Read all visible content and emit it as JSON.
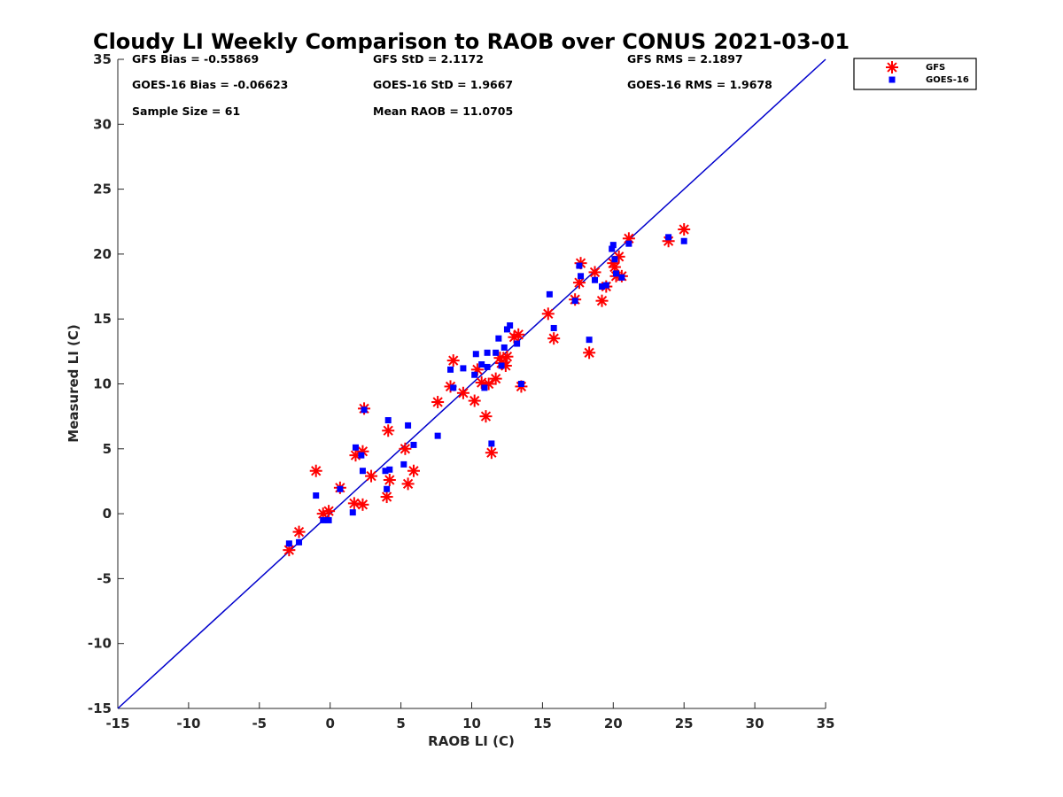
{
  "chart_data": {
    "type": "scatter",
    "title": "Cloudy LI Weekly Comparison to RAOB over CONUS 2021-03-01",
    "xlabel": "RAOB LI (C)",
    "ylabel": "Measured LI (C)",
    "xlim": [
      -15,
      35
    ],
    "ylim": [
      -15,
      35
    ],
    "xticks": [
      -15,
      -10,
      -5,
      0,
      5,
      10,
      15,
      20,
      25,
      30,
      35
    ],
    "yticks": [
      -15,
      -10,
      -5,
      0,
      5,
      10,
      15,
      20,
      25,
      30,
      35
    ],
    "grid": false,
    "legend_position": "top-right",
    "reference_line": {
      "x": [
        -15,
        35
      ],
      "y": [
        -15,
        35
      ],
      "color": "#0000cc"
    },
    "stats": [
      {
        "label": "GFS Bias = -0.55869"
      },
      {
        "label": "GFS StD = 2.1172"
      },
      {
        "label": "GFS RMS = 2.1897"
      },
      {
        "label": "GOES-16 Bias = -0.06623"
      },
      {
        "label": "GOES-16 StD = 1.9667"
      },
      {
        "label": "GOES-16 RMS = 1.9678"
      },
      {
        "label": "Sample Size = 61"
      },
      {
        "label": "Mean RAOB = 11.0705"
      }
    ],
    "series": [
      {
        "name": "GFS",
        "marker": "asterisk",
        "color": "#ff0000",
        "points": [
          [
            -2.9,
            -2.8
          ],
          [
            -2.2,
            -1.4
          ],
          [
            -1.0,
            3.3
          ],
          [
            -0.5,
            0.0
          ],
          [
            -0.1,
            0.2
          ],
          [
            0.7,
            2.0
          ],
          [
            1.7,
            0.8
          ],
          [
            1.8,
            4.5
          ],
          [
            2.3,
            4.8
          ],
          [
            2.3,
            0.7
          ],
          [
            2.4,
            8.1
          ],
          [
            2.9,
            2.9
          ],
          [
            4.0,
            1.3
          ],
          [
            4.1,
            6.4
          ],
          [
            4.2,
            2.6
          ],
          [
            5.3,
            5.0
          ],
          [
            5.5,
            2.3
          ],
          [
            5.9,
            3.3
          ],
          [
            7.6,
            8.6
          ],
          [
            8.5,
            9.8
          ],
          [
            8.7,
            11.8
          ],
          [
            9.4,
            9.3
          ],
          [
            10.2,
            8.7
          ],
          [
            10.4,
            11.1
          ],
          [
            10.7,
            10.1
          ],
          [
            11.0,
            7.5
          ],
          [
            11.2,
            10.0
          ],
          [
            11.4,
            4.7
          ],
          [
            11.7,
            10.4
          ],
          [
            12.0,
            12.0
          ],
          [
            12.1,
            11.6
          ],
          [
            12.4,
            11.4
          ],
          [
            12.5,
            12.1
          ],
          [
            13.0,
            13.6
          ],
          [
            13.3,
            13.8
          ],
          [
            13.5,
            9.8
          ],
          [
            15.4,
            15.4
          ],
          [
            15.8,
            13.5
          ],
          [
            17.3,
            16.5
          ],
          [
            17.6,
            17.8
          ],
          [
            17.7,
            19.3
          ],
          [
            18.3,
            12.4
          ],
          [
            18.7,
            18.6
          ],
          [
            19.2,
            16.4
          ],
          [
            19.5,
            17.5
          ],
          [
            20.0,
            19.3
          ],
          [
            20.1,
            19.0
          ],
          [
            20.2,
            18.3
          ],
          [
            20.4,
            19.8
          ],
          [
            20.6,
            18.3
          ],
          [
            21.1,
            21.2
          ],
          [
            23.9,
            21.0
          ],
          [
            25.0,
            21.9
          ]
        ]
      },
      {
        "name": "GOES-16",
        "marker": "square",
        "color": "#0000ff",
        "points": [
          [
            -2.9,
            -2.3
          ],
          [
            -2.2,
            -2.2
          ],
          [
            -1.0,
            1.4
          ],
          [
            -0.5,
            -0.5
          ],
          [
            -0.1,
            -0.5
          ],
          [
            0.7,
            1.9
          ],
          [
            1.6,
            0.1
          ],
          [
            1.8,
            5.1
          ],
          [
            2.2,
            4.5
          ],
          [
            2.3,
            3.3
          ],
          [
            2.4,
            8.0
          ],
          [
            3.9,
            3.3
          ],
          [
            4.0,
            1.9
          ],
          [
            4.1,
            7.2
          ],
          [
            4.2,
            3.4
          ],
          [
            5.2,
            3.8
          ],
          [
            5.5,
            6.8
          ],
          [
            5.9,
            5.3
          ],
          [
            7.6,
            6.0
          ],
          [
            8.5,
            11.1
          ],
          [
            8.7,
            9.7
          ],
          [
            9.4,
            11.2
          ],
          [
            10.2,
            10.7
          ],
          [
            10.3,
            12.3
          ],
          [
            10.7,
            11.5
          ],
          [
            10.9,
            9.7
          ],
          [
            11.1,
            11.3
          ],
          [
            11.1,
            12.4
          ],
          [
            11.4,
            5.4
          ],
          [
            11.7,
            12.4
          ],
          [
            11.9,
            13.5
          ],
          [
            12.1,
            11.4
          ],
          [
            12.3,
            12.8
          ],
          [
            12.5,
            14.2
          ],
          [
            12.7,
            14.5
          ],
          [
            13.2,
            13.1
          ],
          [
            13.5,
            10.0
          ],
          [
            15.5,
            16.9
          ],
          [
            15.8,
            14.3
          ],
          [
            17.3,
            16.4
          ],
          [
            17.6,
            19.1
          ],
          [
            17.7,
            18.3
          ],
          [
            18.3,
            13.4
          ],
          [
            18.7,
            18.0
          ],
          [
            19.2,
            17.5
          ],
          [
            19.5,
            17.6
          ],
          [
            19.9,
            20.4
          ],
          [
            20.0,
            20.7
          ],
          [
            20.1,
            19.6
          ],
          [
            20.2,
            18.5
          ],
          [
            20.6,
            18.2
          ],
          [
            21.1,
            20.8
          ],
          [
            23.9,
            21.3
          ],
          [
            25.0,
            21.0
          ]
        ]
      }
    ]
  }
}
